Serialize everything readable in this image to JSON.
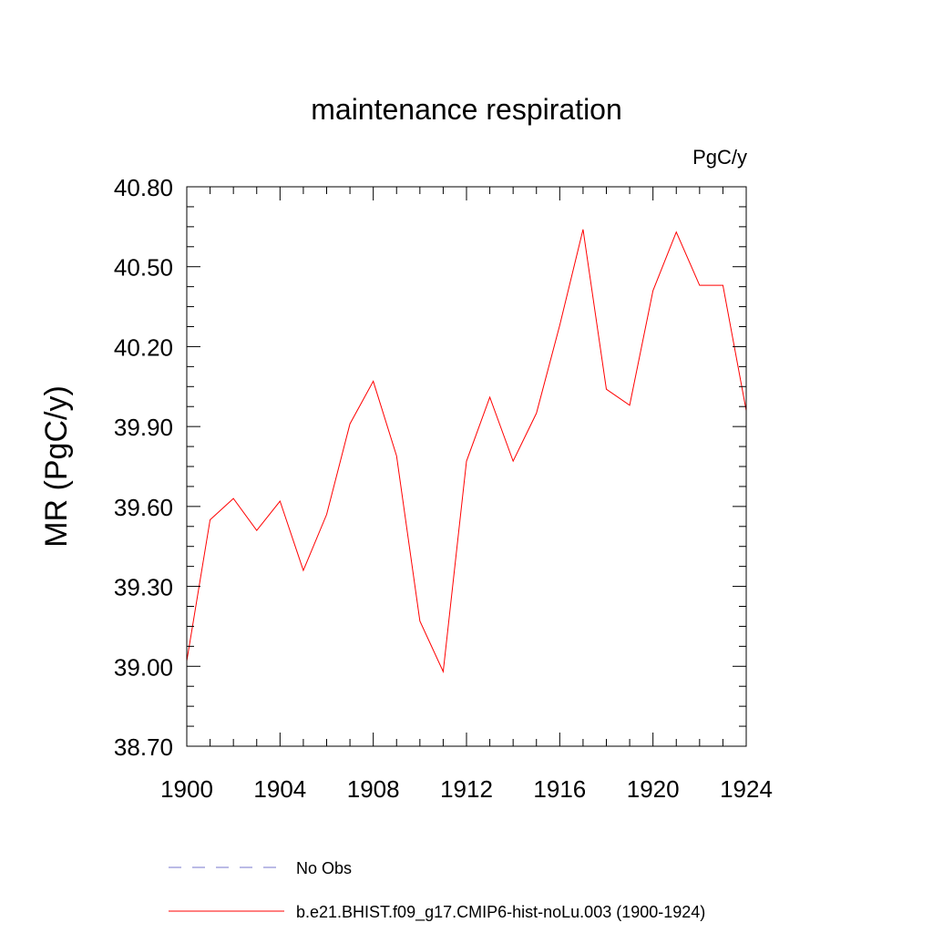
{
  "chart_data": {
    "type": "line",
    "title": "maintenance respiration",
    "units": "PgC/y",
    "ylabel": "MR  (PgC/y)",
    "xlabel": "",
    "xlim": [
      1900,
      1924
    ],
    "ylim": [
      38.7,
      40.8
    ],
    "xticks": [
      {
        "value": 1900,
        "label": "1900"
      },
      {
        "value": 1904,
        "label": "1904"
      },
      {
        "value": 1908,
        "label": "1908"
      },
      {
        "value": 1912,
        "label": "1912"
      },
      {
        "value": 1916,
        "label": "1916"
      },
      {
        "value": 1920,
        "label": "1920"
      },
      {
        "value": 1924,
        "label": "1924"
      }
    ],
    "yticks": [
      {
        "value": 38.7,
        "label": "38.70"
      },
      {
        "value": 39.0,
        "label": "39.00"
      },
      {
        "value": 39.3,
        "label": "39.30"
      },
      {
        "value": 39.6,
        "label": "39.60"
      },
      {
        "value": 39.9,
        "label": "39.90"
      },
      {
        "value": 40.2,
        "label": "40.20"
      },
      {
        "value": 40.5,
        "label": "40.50"
      },
      {
        "value": 40.8,
        "label": "40.80"
      }
    ],
    "grid": false,
    "legend_position": "bottom",
    "series": [
      {
        "name": "b.e21.BHIST.f09_g17.CMIP6-hist-noLu.003 (1900-1924)",
        "color": "#ff0000",
        "dash": "solid",
        "x": [
          1900,
          1901,
          1902,
          1903,
          1904,
          1905,
          1906,
          1907,
          1908,
          1909,
          1910,
          1911,
          1912,
          1913,
          1914,
          1915,
          1916,
          1917,
          1918,
          1919,
          1920,
          1921,
          1922,
          1923,
          1924
        ],
        "values": [
          39.02,
          39.55,
          39.63,
          39.51,
          39.62,
          39.36,
          39.57,
          39.91,
          40.07,
          39.79,
          39.17,
          38.98,
          39.77,
          40.01,
          39.77,
          39.95,
          40.28,
          40.64,
          40.04,
          39.98,
          40.41,
          40.63,
          40.43,
          40.43,
          39.96
        ]
      }
    ],
    "legend": [
      {
        "label": "No Obs",
        "color": "#7777cc",
        "dash": "dashed"
      },
      {
        "label": "b.e21.BHIST.f09_g17.CMIP6-hist-noLu.003 (1900-1924)",
        "color": "#ff0000",
        "dash": "solid"
      }
    ]
  }
}
